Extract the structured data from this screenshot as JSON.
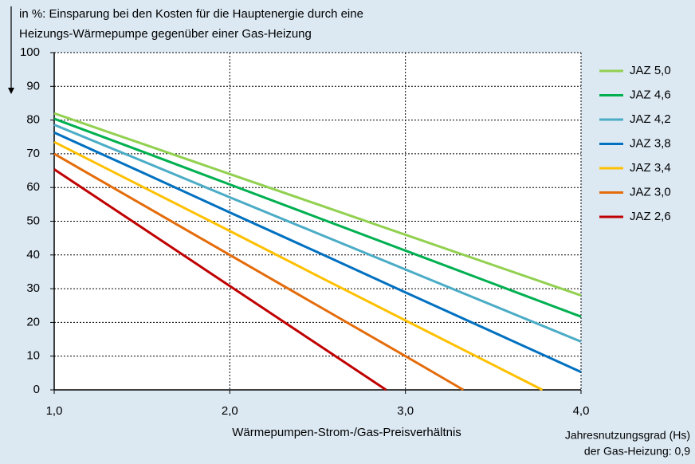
{
  "chart_data": {
    "type": "line",
    "title_lines": [
      "in %: Einsparung bei den Kosten für die Hauptenergie durch eine",
      "Heizungs-Wärmepumpe  gegenüber einer Gas-Heizung"
    ],
    "x_label": "Wärmepumpen-Strom-/Gas-Preisverhältnis",
    "note_lines": [
      "Jahresnutzungsgrad (Hs)",
      "der Gas-Heizung: 0,9"
    ],
    "xlim": [
      1,
      4
    ],
    "ylim": [
      0,
      100
    ],
    "xticks": [
      {
        "value": 1,
        "label": "1,0"
      },
      {
        "value": 2,
        "label": "2,0"
      },
      {
        "value": 3,
        "label": "3,0"
      },
      {
        "value": 4,
        "label": "4,0"
      }
    ],
    "yticks": [
      0,
      10,
      20,
      30,
      40,
      50,
      60,
      70,
      80,
      90,
      100
    ],
    "grid": true,
    "legend": "right",
    "series": [
      {
        "name": "JAZ 5,0",
        "color": "#92d050",
        "x": [
          1,
          1.5,
          2,
          2.5,
          3,
          3.5,
          4
        ],
        "values": [
          82,
          73,
          64,
          55,
          46,
          37,
          28
        ]
      },
      {
        "name": "JAZ 4,6",
        "color": "#00b050",
        "x": [
          1,
          1.5,
          2,
          2.5,
          3,
          3.5,
          4
        ],
        "values": [
          80.4,
          70.7,
          60.9,
          51.1,
          41.3,
          31.5,
          21.7
        ]
      },
      {
        "name": "JAZ 4,2",
        "color": "#4bacc6",
        "x": [
          1,
          1.5,
          2,
          2.5,
          3,
          3.5,
          4
        ],
        "values": [
          78.6,
          67.9,
          57.1,
          46.4,
          35.7,
          25.0,
          14.3
        ]
      },
      {
        "name": "JAZ 3,8",
        "color": "#0070c0",
        "x": [
          1,
          1.5,
          2,
          2.5,
          3,
          3.5,
          4
        ],
        "values": [
          76.3,
          64.5,
          52.6,
          40.8,
          28.9,
          17.1,
          5.3
        ]
      },
      {
        "name": "JAZ 3,4",
        "color": "#ffc000",
        "x": [
          1,
          1.5,
          2,
          2.5,
          3,
          3.5,
          3.78
        ],
        "values": [
          73.5,
          60.3,
          47.1,
          33.8,
          20.6,
          7.4,
          0
        ]
      },
      {
        "name": "JAZ 3,0",
        "color": "#e46c0a",
        "x": [
          1,
          1.5,
          2,
          2.5,
          3,
          3.33
        ],
        "values": [
          70,
          55,
          40,
          25,
          10,
          0
        ]
      },
      {
        "name": "JAZ 2,6",
        "color": "#c00000",
        "x": [
          1,
          1.5,
          2,
          2.5,
          2.89
        ],
        "values": [
          65.4,
          48.1,
          30.8,
          13.5,
          0
        ]
      }
    ]
  }
}
